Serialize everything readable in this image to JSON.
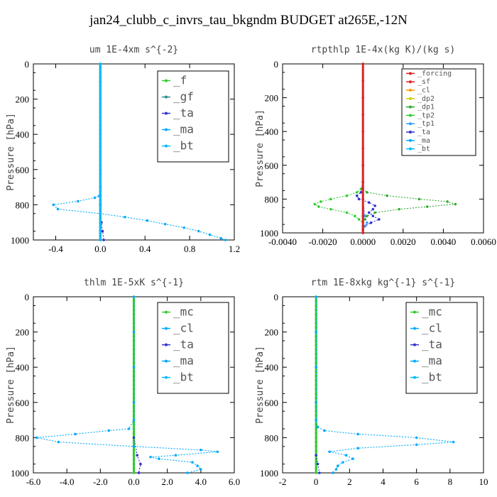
{
  "title": "jan24_clubb_c_invrs_tau_bkgndm  BUDGET at265E,-12N",
  "chart_data": [
    {
      "type": "line",
      "title": "um  1E-4xm s^{-2}",
      "ylabel": "Pressure [hPa]",
      "ylim": [
        1000,
        0
      ],
      "xlim": [
        -0.6,
        1.2
      ],
      "xticks": [
        "-0.4",
        "0.0",
        "0.4",
        "0.8",
        "1.2"
      ],
      "xtick_values": [
        -0.4,
        0.0,
        0.4,
        0.8,
        1.2
      ],
      "yticks": [
        "0",
        "200",
        "400",
        "600",
        "800",
        "1000"
      ],
      "ytick_values": [
        0,
        200,
        400,
        600,
        800,
        1000
      ],
      "legend": [
        "_f",
        "_gf",
        "_ta",
        "_ma",
        "_bt"
      ],
      "legend_colors": [
        "#33cc33",
        "#2e8b8b",
        "#3333cc",
        "#00aaff",
        "#00bbff"
      ],
      "series": [
        {
          "name": "_f",
          "color": "#33cc33",
          "y": [
            0,
            25,
            50,
            75,
            100,
            125,
            150,
            175,
            200,
            225,
            250,
            275,
            300,
            325,
            350,
            375,
            400,
            425,
            450,
            475,
            500,
            525,
            550,
            575,
            600,
            625,
            650,
            675,
            700,
            725,
            750,
            775,
            800,
            825,
            850,
            875,
            900,
            925,
            950,
            975,
            1000
          ],
          "x": [
            0,
            0,
            0,
            0,
            0,
            0,
            0,
            0,
            0,
            0,
            0,
            0,
            0,
            0,
            0,
            0,
            0,
            0,
            0,
            0,
            0,
            0,
            0,
            0,
            0,
            0,
            0,
            0,
            0,
            0,
            0,
            0,
            0,
            0,
            0,
            0,
            0,
            0,
            0,
            0,
            0
          ]
        },
        {
          "name": "_gf",
          "color": "#2e8b8b",
          "y": [
            0,
            100,
            200,
            300,
            400,
            500,
            600,
            700,
            800,
            900,
            1000
          ],
          "x": [
            0,
            0,
            0,
            0,
            0,
            0,
            0,
            0,
            0,
            0,
            0
          ]
        },
        {
          "name": "_ta",
          "color": "#3333cc",
          "y": [
            700,
            750,
            800,
            850,
            900,
            950,
            1000
          ],
          "x": [
            0,
            0,
            0,
            0,
            0.01,
            0.02,
            0.03
          ]
        },
        {
          "name": "_ma",
          "color": "#00aaff",
          "y": [
            0,
            200,
            400,
            600,
            700,
            750,
            760,
            780,
            800,
            825,
            850,
            870,
            890,
            910,
            930,
            950,
            970,
            990,
            1000
          ],
          "x": [
            0,
            0,
            0,
            0,
            0,
            -0.01,
            -0.05,
            -0.2,
            -0.42,
            -0.38,
            0,
            0.22,
            0.42,
            0.58,
            0.75,
            0.88,
            0.98,
            1.08,
            1.12
          ]
        },
        {
          "name": "_bt",
          "color": "#00bbff",
          "y": [
            0,
            500,
            1000
          ],
          "x": [
            0,
            0,
            0
          ]
        }
      ]
    },
    {
      "type": "line",
      "title": "rtpthlp  1E-4x(kg K)/(kg s)",
      "ylabel": "Pressure [hPa]",
      "ylim": [
        1000,
        0
      ],
      "xlim": [
        -0.004,
        0.006
      ],
      "xticks": [
        "-0.0040",
        "-0.0020",
        "0.0000",
        "0.0020",
        "0.0040",
        "0.0060"
      ],
      "xtick_values": [
        -0.004,
        -0.002,
        0.0,
        0.002,
        0.004,
        0.006
      ],
      "yticks": [
        "0",
        "200",
        "400",
        "600",
        "800",
        "1000"
      ],
      "ytick_values": [
        0,
        200,
        400,
        600,
        800,
        1000
      ],
      "legend": [
        "_forcing",
        "_sf",
        "_cl",
        "_dp2",
        "_dp1",
        "_tp2",
        "_tp1",
        "_ta",
        "_ma",
        "_bt"
      ],
      "legend_colors": [
        "#dd2222",
        "#dd2222",
        "#ff9900",
        "#cccc00",
        "#33aa33",
        "#33cc33",
        "#3399ff",
        "#3333cc",
        "#00aaff",
        "#00bbff"
      ],
      "series": [
        {
          "name": "_dp1",
          "color": "#33aa33",
          "y": [
            0,
            600,
            700,
            740,
            760,
            780,
            800,
            815,
            830,
            845,
            860,
            880,
            900,
            920,
            940,
            960,
            980,
            1000
          ],
          "x": [
            0,
            0,
            0,
            0,
            0.0002,
            0.0012,
            0.0028,
            0.0042,
            0.0046,
            0.0032,
            0.0018,
            0.0006,
            0.0002,
            0.0001,
            0,
            0,
            0,
            0
          ]
        },
        {
          "name": "_tp2",
          "color": "#33cc33",
          "y": [
            0,
            700,
            740,
            760,
            780,
            800,
            815,
            830,
            845,
            860,
            880,
            900,
            920,
            940,
            960,
            980,
            1000
          ],
          "x": [
            0,
            0,
            -0.0001,
            -0.0003,
            -0.0008,
            -0.0016,
            -0.0021,
            -0.0024,
            -0.0022,
            -0.0016,
            -0.0008,
            -0.0004,
            -0.0002,
            0,
            0,
            0,
            0
          ]
        },
        {
          "name": "_ta",
          "color": "#3333cc",
          "y": [
            700,
            760,
            780,
            800,
            820,
            840,
            860,
            880,
            900,
            920,
            940,
            960,
            980,
            1000
          ],
          "x": [
            0,
            -0.0001,
            -0.0003,
            -0.0002,
            0.0003,
            0.0006,
            0.0005,
            0.0003,
            0.0005,
            0.0008,
            0.0004,
            0.0001,
            0,
            0
          ]
        },
        {
          "name": "_tp1",
          "color": "#3399ff",
          "y": [
            700,
            800,
            900,
            940,
            960,
            980,
            1000
          ],
          "x": [
            0,
            0,
            0.0001,
            0.0002,
            0.0001,
            0,
            0
          ]
        },
        {
          "name": "_forcing",
          "color": "#dd2222",
          "y": [
            0,
            100,
            200,
            300,
            400,
            500,
            600,
            700,
            800,
            900,
            1000
          ],
          "x": [
            0,
            0,
            0,
            0,
            0,
            0,
            0,
            0,
            0,
            0,
            0
          ]
        }
      ]
    },
    {
      "type": "line",
      "title": "thlm  1E-5xK s^{-1}",
      "ylabel": "Pressure [hPa]",
      "ylim": [
        1000,
        0
      ],
      "xlim": [
        -6.0,
        6.0
      ],
      "xticks": [
        "-6.0",
        "-4.0",
        "-2.0",
        "0.0",
        "2.0",
        "4.0",
        "6.0"
      ],
      "xtick_values": [
        -6,
        -4,
        -2,
        0,
        2,
        4,
        6
      ],
      "yticks": [
        "0",
        "200",
        "400",
        "600",
        "800",
        "1000"
      ],
      "ytick_values": [
        0,
        200,
        400,
        600,
        800,
        1000
      ],
      "legend": [
        "_mc",
        "_cl",
        "_ta",
        "_ma",
        "_bt"
      ],
      "legend_colors": [
        "#33cc33",
        "#00aaff",
        "#3333cc",
        "#00aaff",
        "#00bbff"
      ],
      "series": [
        {
          "name": "_mc",
          "color": "#33cc33",
          "y": [
            0,
            25,
            50,
            75,
            100,
            125,
            150,
            175,
            200,
            225,
            250,
            275,
            300,
            325,
            350,
            375,
            400,
            425,
            450,
            475,
            500,
            525,
            550,
            575,
            600,
            625,
            650,
            675,
            700,
            725,
            750,
            775,
            800,
            825,
            850,
            875,
            900,
            925,
            950,
            975,
            1000
          ],
          "x": [
            0,
            0,
            0,
            0,
            0,
            0,
            0,
            0,
            0,
            0,
            0,
            0,
            0,
            0,
            0,
            0,
            0,
            0,
            0,
            0,
            0,
            0,
            0,
            0,
            0,
            0,
            0,
            0,
            0,
            0,
            0,
            0,
            0,
            0,
            0,
            0,
            0,
            0,
            0,
            0,
            0
          ]
        },
        {
          "name": "_cl",
          "color": "#00aaff",
          "y": [
            0,
            200,
            400,
            600,
            700,
            750,
            760,
            780,
            800,
            825,
            850,
            870,
            880,
            900,
            910,
            920,
            940,
            960,
            980,
            1000
          ],
          "x": [
            0,
            0,
            0,
            0,
            0,
            -0.3,
            -1.5,
            -3.5,
            -5.8,
            -4.5,
            0,
            4.0,
            5.0,
            2.5,
            1.0,
            1.5,
            3.5,
            3.8,
            4.0,
            3.2
          ]
        },
        {
          "name": "_ta",
          "color": "#3333cc",
          "y": [
            800,
            900,
            950,
            1000
          ],
          "x": [
            0,
            0.2,
            0.4,
            0.3
          ]
        }
      ]
    },
    {
      "type": "line",
      "title": "rtm  1E-8xkg kg^{-1} s^{-1}",
      "ylabel": "Pressure [hPa]",
      "ylim": [
        1000,
        0
      ],
      "xlim": [
        -2,
        10
      ],
      "xticks": [
        "-2",
        "0",
        "2",
        "4",
        "6",
        "8",
        "10"
      ],
      "xtick_values": [
        -2,
        0,
        2,
        4,
        6,
        8,
        10
      ],
      "yticks": [
        "0",
        "200",
        "400",
        "600",
        "800",
        "1000"
      ],
      "ytick_values": [
        0,
        200,
        400,
        600,
        800,
        1000
      ],
      "legend": [
        "_mc",
        "_cl",
        "_ta",
        "_ma",
        "_bt"
      ],
      "legend_colors": [
        "#33cc33",
        "#00aaff",
        "#3333cc",
        "#00aaff",
        "#00bbff"
      ],
      "series": [
        {
          "name": "_mc",
          "color": "#33cc33",
          "y": [
            0,
            25,
            50,
            75,
            100,
            125,
            150,
            175,
            200,
            225,
            250,
            275,
            300,
            325,
            350,
            375,
            400,
            425,
            450,
            475,
            500,
            525,
            550,
            575,
            600,
            625,
            650,
            675,
            700,
            725,
            750,
            775,
            800,
            825,
            850,
            875,
            900,
            925,
            950,
            975,
            1000
          ],
          "x": [
            0,
            0,
            0,
            0,
            0,
            0,
            0,
            0,
            0,
            0,
            0,
            0,
            0,
            0,
            0,
            0,
            0,
            0,
            0,
            0,
            0,
            0,
            0,
            0,
            0,
            0,
            0,
            0,
            0,
            0,
            0,
            0,
            0,
            0,
            0,
            0,
            0,
            0,
            0,
            0,
            0
          ]
        },
        {
          "name": "_cl",
          "color": "#00aaff",
          "y": [
            0,
            200,
            400,
            600,
            700,
            740,
            760,
            780,
            800,
            825,
            840,
            860,
            880,
            900,
            920,
            940,
            960,
            980,
            1000
          ],
          "x": [
            0,
            0,
            0,
            0,
            0,
            0.1,
            0.5,
            2.5,
            6.0,
            8.2,
            6.0,
            2.5,
            0.8,
            1.8,
            2.2,
            1.6,
            1.3,
            1.2,
            1.0
          ]
        },
        {
          "name": "_ta",
          "color": "#3333cc",
          "y": [
            900,
            950,
            1000
          ],
          "x": [
            0,
            0.1,
            0.2
          ]
        }
      ]
    }
  ]
}
